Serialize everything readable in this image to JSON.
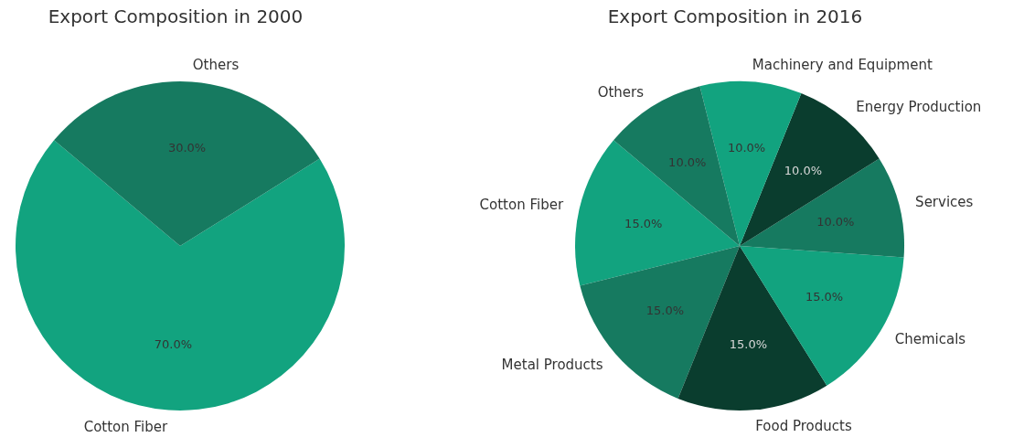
{
  "chart_data": [
    {
      "type": "pie",
      "title": "Export Composition in 2000",
      "categories": [
        "Cotton Fiber",
        "Others"
      ],
      "values": [
        70,
        30
      ],
      "colors": [
        "#12a37f",
        "#167a60"
      ],
      "value_labels": [
        "70.0%",
        "30.0%"
      ]
    },
    {
      "type": "pie",
      "title": "Export Composition in 2016",
      "categories": [
        "Cotton Fiber",
        "Metal Products",
        "Food Products",
        "Chemicals",
        "Services",
        "Energy Production",
        "Machinery and Equipment",
        "Others"
      ],
      "values": [
        15,
        15,
        15,
        15,
        10,
        10,
        10,
        10
      ],
      "colors": [
        "#12a37f",
        "#167a60",
        "#0a3d2e",
        "#12a37f",
        "#167a60",
        "#0a3d2e",
        "#12a37f",
        "#167a60"
      ],
      "value_labels": [
        "15.0%",
        "15.0%",
        "15.0%",
        "15.0%",
        "10.0%",
        "10.0%",
        "10.0%",
        "10.0%"
      ]
    }
  ]
}
